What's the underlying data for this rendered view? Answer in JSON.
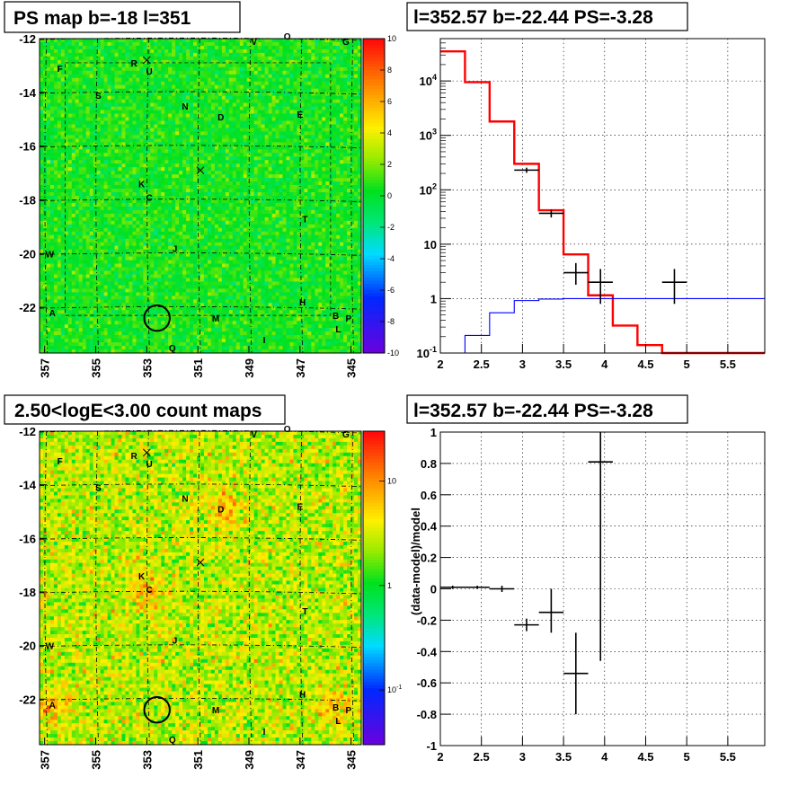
{
  "colors": {
    "model_total": "#ff0000",
    "model_component": "#0000ff",
    "data_points": "#000000",
    "source_circle": "#000000"
  },
  "chart_data": [
    {
      "type": "heatmap",
      "panel": "top-left",
      "title": "PS map b=-18 l=351",
      "x_ticks": [
        "357",
        "355",
        "353",
        "351",
        "349",
        "347",
        "345"
      ],
      "x_tick_values": [
        357,
        355,
        353,
        351,
        349,
        347,
        345
      ],
      "y_ticks": [
        "-12",
        "-14",
        "-16",
        "-18",
        "-20",
        "-22"
      ],
      "y_tick_values": [
        -12,
        -14,
        -16,
        -18,
        -20,
        -22
      ],
      "xlim": [
        357.2,
        344.6
      ],
      "ylim": [
        -23.7,
        -12
      ],
      "colorbar": {
        "min": -10,
        "max": 10,
        "scale": "linear",
        "ticks": [
          "-10",
          "-8",
          "-6",
          "-4",
          "-2",
          "0",
          "2",
          "4",
          "6",
          "8",
          "10"
        ]
      },
      "sources": [
        {
          "label": "A",
          "l": 356.7,
          "b": -22.2
        },
        {
          "label": "B",
          "l": 345.6,
          "b": -22.3
        },
        {
          "label": "C",
          "l": 352.9,
          "b": -17.9
        },
        {
          "label": "D",
          "l": 350.1,
          "b": -14.9
        },
        {
          "label": "E",
          "l": 347.0,
          "b": -14.8
        },
        {
          "label": "F",
          "l": 356.4,
          "b": -13.1
        },
        {
          "label": "G",
          "l": 345.2,
          "b": -12.1
        },
        {
          "label": "H",
          "l": 346.9,
          "b": -21.8
        },
        {
          "label": "I",
          "l": 348.4,
          "b": -23.2
        },
        {
          "label": "J",
          "l": 351.9,
          "b": -19.8
        },
        {
          "label": "K",
          "l": 353.2,
          "b": -17.4
        },
        {
          "label": "L",
          "l": 345.5,
          "b": -22.8
        },
        {
          "label": "M",
          "l": 350.3,
          "b": -22.4
        },
        {
          "label": "N",
          "l": 351.5,
          "b": -14.5
        },
        {
          "label": "O",
          "l": 347.5,
          "b": -11.9
        },
        {
          "label": "P",
          "l": 345.1,
          "b": -22.4
        },
        {
          "label": "Q",
          "l": 352.0,
          "b": -23.5
        },
        {
          "label": "R",
          "l": 353.5,
          "b": -12.9
        },
        {
          "label": "S",
          "l": 354.9,
          "b": -14.1
        },
        {
          "label": "T",
          "l": 346.8,
          "b": -18.7
        },
        {
          "label": "U",
          "l": 352.9,
          "b": -13.2
        },
        {
          "label": "V",
          "l": 348.8,
          "b": -12.1
        },
        {
          "label": "W",
          "l": 356.8,
          "b": -20.0
        }
      ],
      "crosses": [
        {
          "l": 353.0,
          "b": -12.8
        },
        {
          "l": 350.9,
          "b": -16.9
        }
      ],
      "circle": {
        "l": 352.6,
        "b": -22.4,
        "radius_deg": 0.5
      }
    },
    {
      "type": "line",
      "panel": "top-right",
      "title": "l=352.57 b=-22.44 PS=-3.28",
      "yscale": "log",
      "xlim": [
        2,
        5.95
      ],
      "ylim": [
        0.1,
        60000
      ],
      "x_ticks": [
        "2",
        "2.5",
        "3",
        "3.5",
        "4",
        "4.5",
        "5",
        "5.5"
      ],
      "y_ticks": [
        "10^-1",
        "1",
        "10",
        "10^2",
        "10^3",
        "10^4"
      ],
      "grid": true,
      "series": [
        {
          "style": "step",
          "color": "#ff0000",
          "edges": [
            2.0,
            2.3,
            2.6,
            2.9,
            3.2,
            3.5,
            3.8,
            4.1,
            4.4,
            4.7,
            5.0,
            5.95
          ],
          "values": [
            35000,
            9500,
            1800,
            300,
            42,
            6.5,
            1.15,
            0.32,
            0.14,
            0.1,
            0.1
          ]
        },
        {
          "style": "step",
          "color": "#0000ff",
          "edges": [
            2.0,
            2.3,
            2.6,
            2.9,
            3.2,
            3.5,
            3.8,
            4.1,
            4.4,
            4.7,
            5.0,
            5.95
          ],
          "values": [
            0.1,
            0.21,
            0.55,
            0.92,
            0.98,
            1.0,
            1.0,
            1.0,
            1.0,
            1.0,
            1.0
          ]
        },
        {
          "style": "errorbar",
          "color": "#000000",
          "x": [
            3.05,
            3.35,
            3.65,
            3.95,
            4.85
          ],
          "xerr": [
            0.15,
            0.15,
            0.15,
            0.15,
            0.15
          ],
          "y": [
            230,
            37,
            3.0,
            2.0,
            2.0
          ],
          "ylo": [
            205,
            31,
            1.8,
            0.8,
            0.8
          ],
          "yhi": [
            255,
            43,
            4.5,
            3.5,
            3.5
          ]
        }
      ]
    },
    {
      "type": "heatmap",
      "panel": "bottom-left",
      "title": "2.50<logE<3.00 count maps",
      "x_ticks": [
        "357",
        "355",
        "353",
        "351",
        "349",
        "347",
        "345"
      ],
      "x_tick_values": [
        357,
        355,
        353,
        351,
        349,
        347,
        345
      ],
      "y_ticks": [
        "-12",
        "-14",
        "-16",
        "-18",
        "-20",
        "-22"
      ],
      "y_tick_values": [
        -12,
        -14,
        -16,
        -18,
        -20,
        -22
      ],
      "xlim": [
        357.2,
        344.6
      ],
      "ylim": [
        -23.7,
        -12
      ],
      "colorbar": {
        "scale": "log",
        "min": 0.03,
        "max": 30,
        "ticks": [
          "10^-1",
          "1",
          "10"
        ]
      },
      "hotspots": [
        {
          "l": 345.6,
          "b": -22.3
        },
        {
          "l": 350.0,
          "b": -14.9
        },
        {
          "l": 353.0,
          "b": -18.0
        },
        {
          "l": 356.7,
          "b": -22.2
        }
      ]
    },
    {
      "type": "scatter",
      "panel": "bottom-right",
      "title": "l=352.57 b=-22.44 PS=-3.28",
      "ylabel": "(data-model)/model",
      "xlim": [
        2,
        5.95
      ],
      "ylim": [
        -1,
        1
      ],
      "x_ticks": [
        "2",
        "2.5",
        "3",
        "3.5",
        "4",
        "4.5",
        "5",
        "5.5"
      ],
      "y_ticks": [
        "-1",
        "-0.8",
        "-0.6",
        "-0.4",
        "-0.2",
        "0",
        "0.2",
        "0.4",
        "0.6",
        "0.8",
        "1"
      ],
      "grid": true,
      "points": {
        "x": [
          2.15,
          2.45,
          2.75,
          3.05,
          3.35,
          3.65,
          3.95
        ],
        "xerr": 0.15,
        "y": [
          0.01,
          0.01,
          0.0,
          -0.23,
          -0.15,
          -0.54,
          0.81
        ],
        "ylo": [
          0.0,
          0.0,
          -0.02,
          -0.27,
          -0.28,
          -0.8,
          -0.46
        ],
        "yhi": [
          0.02,
          0.02,
          0.02,
          -0.19,
          0.0,
          -0.28,
          1.0
        ]
      }
    }
  ]
}
